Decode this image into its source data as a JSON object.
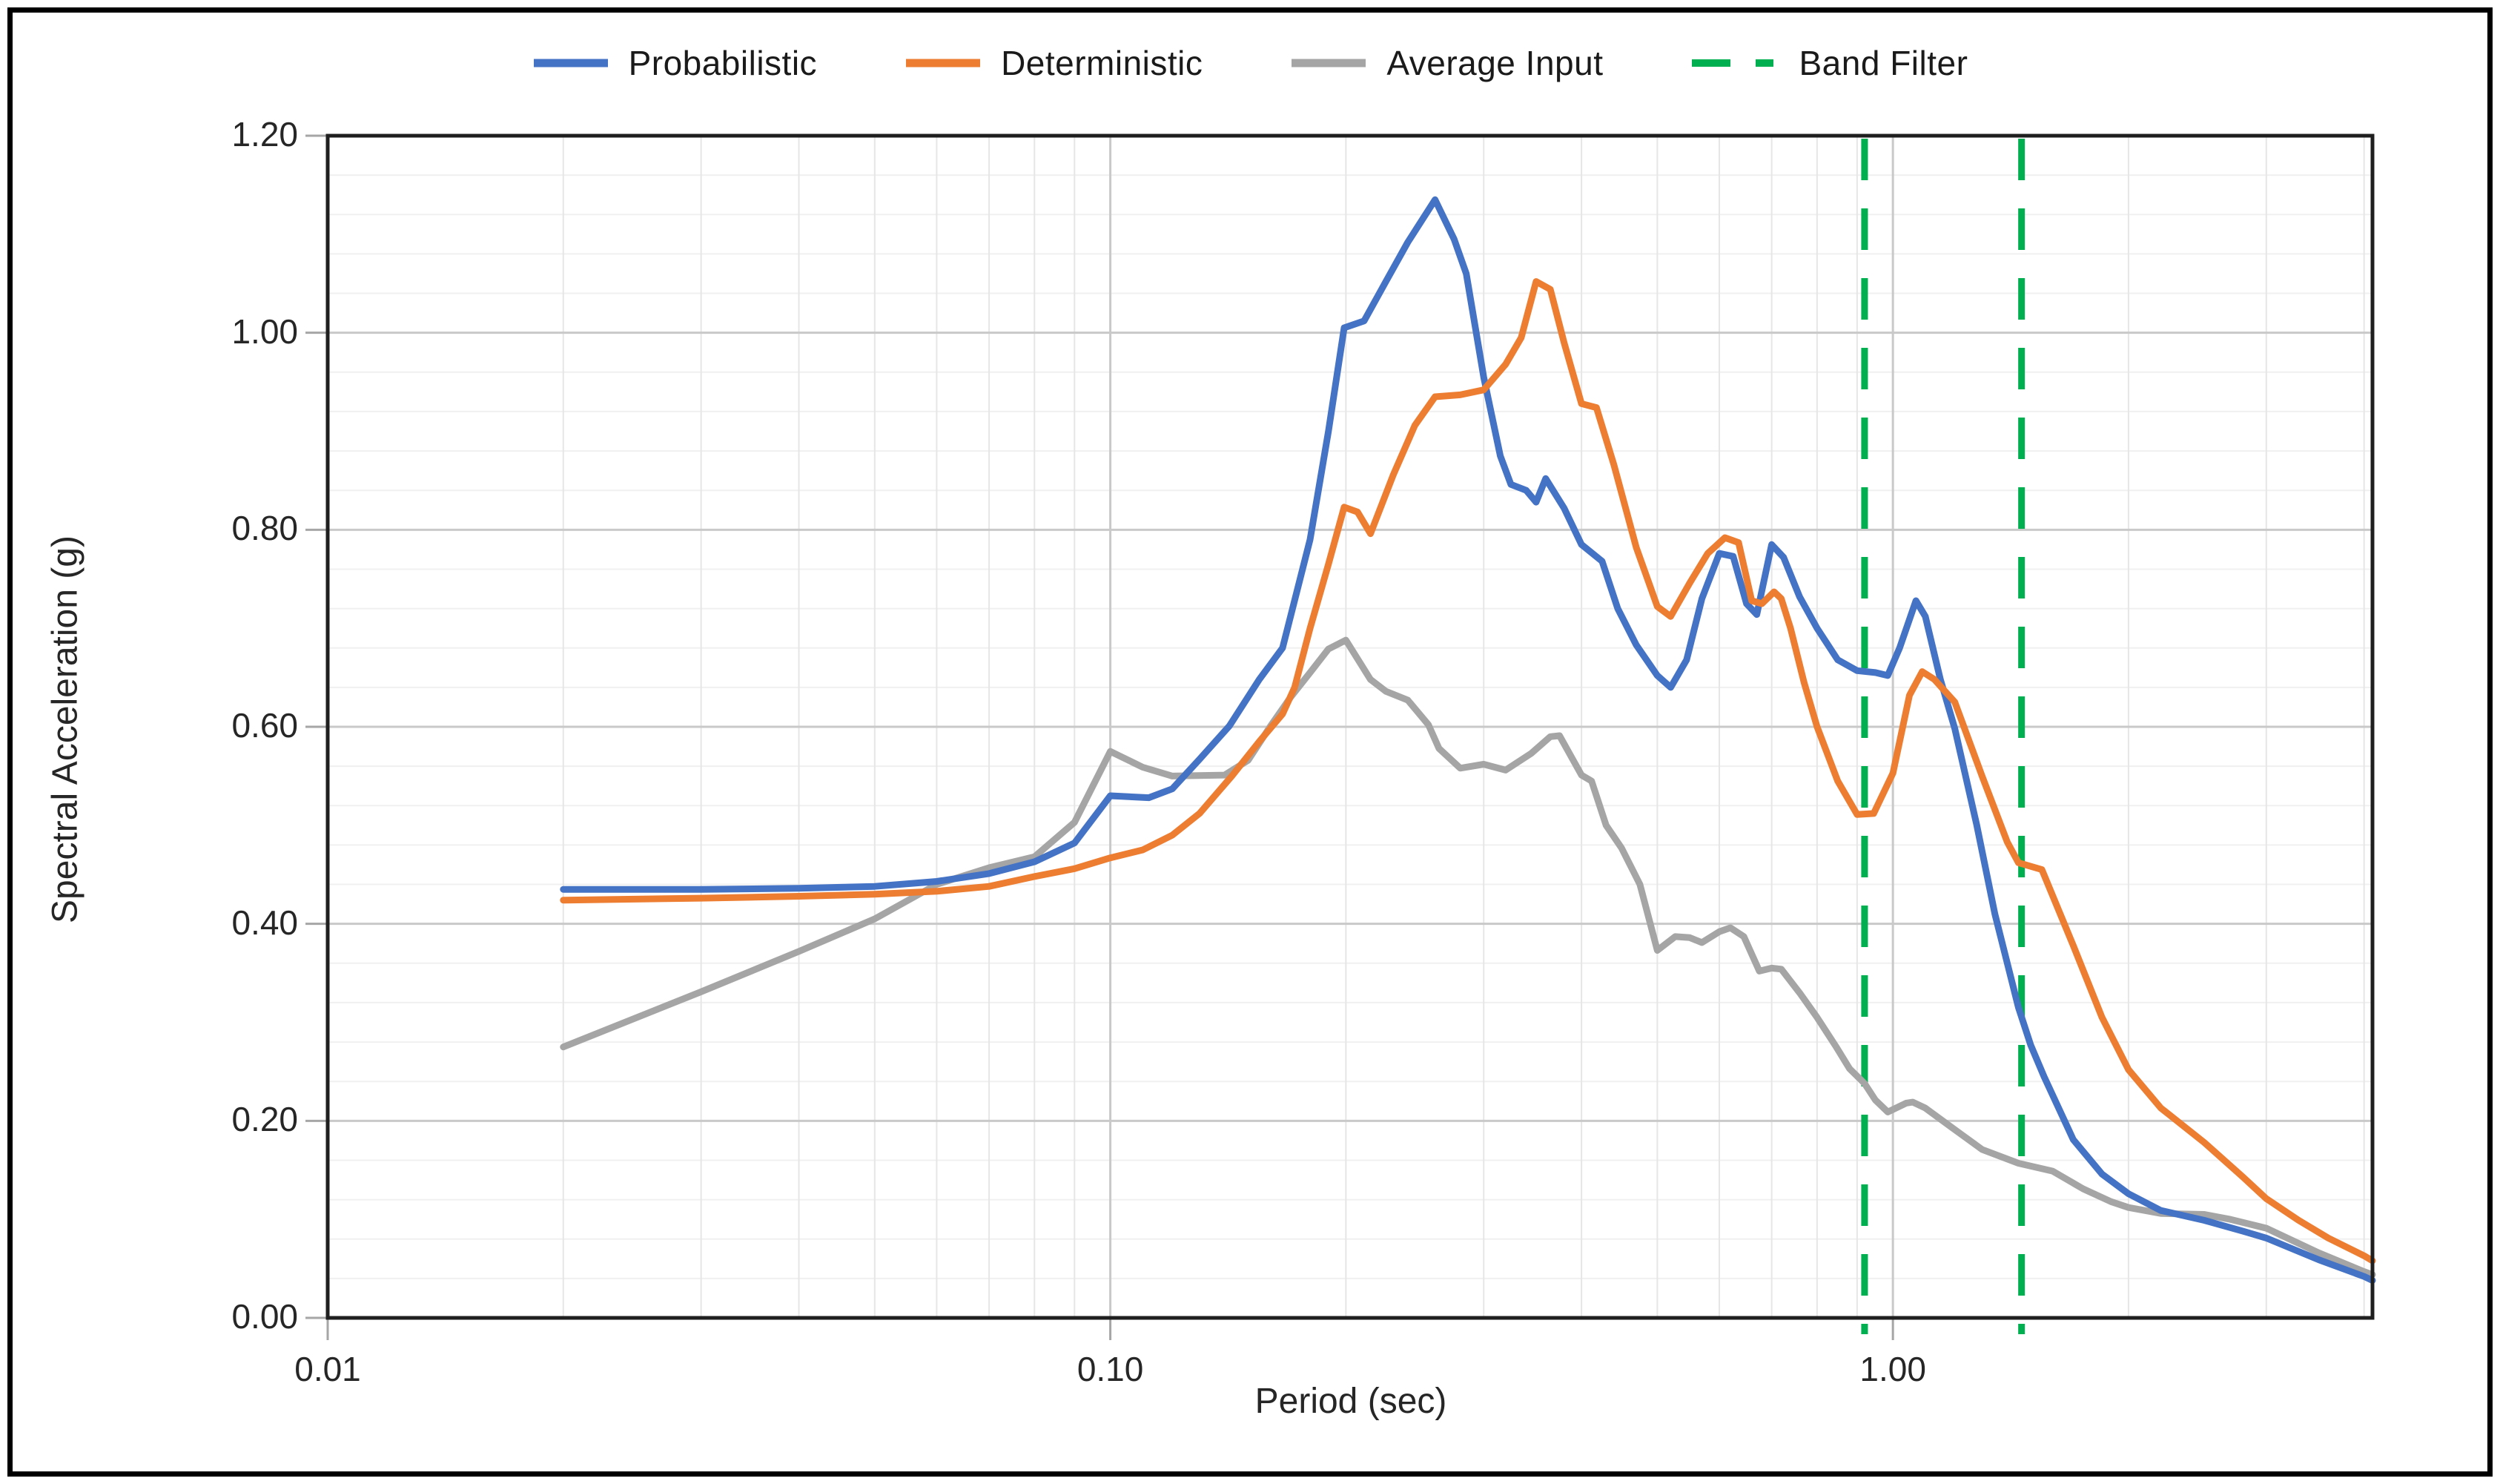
{
  "legend": {
    "items": [
      {
        "label": "Probabilistic",
        "color": "#4472C4",
        "style": "solid"
      },
      {
        "label": "Deterministic",
        "color": "#ED7D31",
        "style": "solid"
      },
      {
        "label": "Average Input",
        "color": "#A5A5A5",
        "style": "solid"
      },
      {
        "label": "Band Filter",
        "color": "#00B050",
        "style": "dashed"
      }
    ]
  },
  "axes": {
    "x_title": "Period (sec)",
    "y_title": "Spectral Acceleration (g)",
    "x_tick_labels": [
      "0.01",
      "0.10",
      "1.00"
    ],
    "x_tick_values": [
      0.01,
      0.1,
      1.0
    ],
    "y_tick_labels": [
      "0.00",
      "0.20",
      "0.40",
      "0.60",
      "0.80",
      "1.00",
      "1.20"
    ],
    "y_tick_values": [
      0.0,
      0.2,
      0.4,
      0.6,
      0.8,
      1.0,
      1.2
    ]
  },
  "colors": {
    "frame": "#1f1f1f",
    "major_grid": "#c9c9c9",
    "minor_grid_h": "#f0f0f0",
    "minor_grid_v": "#e6e6e6",
    "tick": "#a6a6a6",
    "band_filter": "#00B050"
  },
  "chart_data": {
    "type": "line",
    "title": "",
    "xlabel": "Period (sec)",
    "ylabel": "Spectral Acceleration (g)",
    "x_scale": "log",
    "xlim": [
      0.01,
      4.1
    ],
    "ylim": [
      0.0,
      1.2
    ],
    "y_major_unit": 0.2,
    "y_minor_unit": 0.04,
    "grid": true,
    "legend_position": "top",
    "band_filter_periods": [
      0.92,
      1.46
    ],
    "series": [
      {
        "name": "Probabilistic",
        "color": "#4472C4",
        "dash": null,
        "points": [
          [
            0.02,
            0.435
          ],
          [
            0.03,
            0.435
          ],
          [
            0.04,
            0.436
          ],
          [
            0.05,
            0.438
          ],
          [
            0.06,
            0.443
          ],
          [
            0.07,
            0.451
          ],
          [
            0.08,
            0.463
          ],
          [
            0.09,
            0.482
          ],
          [
            0.1,
            0.53
          ],
          [
            0.112,
            0.528
          ],
          [
            0.12,
            0.537
          ],
          [
            0.13,
            0.567
          ],
          [
            0.142,
            0.601
          ],
          [
            0.155,
            0.648
          ],
          [
            0.166,
            0.68
          ],
          [
            0.18,
            0.79
          ],
          [
            0.19,
            0.9
          ],
          [
            0.199,
            1.005
          ],
          [
            0.211,
            1.012
          ],
          [
            0.225,
            1.052
          ],
          [
            0.24,
            1.092
          ],
          [
            0.26,
            1.135
          ],
          [
            0.275,
            1.095
          ],
          [
            0.285,
            1.06
          ],
          [
            0.3,
            0.955
          ],
          [
            0.315,
            0.875
          ],
          [
            0.325,
            0.846
          ],
          [
            0.34,
            0.84
          ],
          [
            0.35,
            0.828
          ],
          [
            0.36,
            0.852
          ],
          [
            0.38,
            0.822
          ],
          [
            0.4,
            0.785
          ],
          [
            0.425,
            0.768
          ],
          [
            0.445,
            0.72
          ],
          [
            0.47,
            0.683
          ],
          [
            0.5,
            0.652
          ],
          [
            0.52,
            0.64
          ],
          [
            0.545,
            0.668
          ],
          [
            0.57,
            0.73
          ],
          [
            0.6,
            0.776
          ],
          [
            0.625,
            0.773
          ],
          [
            0.65,
            0.725
          ],
          [
            0.67,
            0.714
          ],
          [
            0.7,
            0.785
          ],
          [
            0.725,
            0.772
          ],
          [
            0.76,
            0.732
          ],
          [
            0.8,
            0.7
          ],
          [
            0.85,
            0.668
          ],
          [
            0.9,
            0.657
          ],
          [
            0.95,
            0.655
          ],
          [
            0.985,
            0.652
          ],
          [
            1.02,
            0.68
          ],
          [
            1.07,
            0.728
          ],
          [
            1.1,
            0.712
          ],
          [
            1.15,
            0.648
          ],
          [
            1.2,
            0.598
          ],
          [
            1.28,
            0.5
          ],
          [
            1.35,
            0.41
          ],
          [
            1.447,
            0.315
          ],
          [
            1.5,
            0.277
          ],
          [
            1.56,
            0.245
          ],
          [
            1.7,
            0.181
          ],
          [
            1.85,
            0.146
          ],
          [
            2.0,
            0.126
          ],
          [
            2.2,
            0.109
          ],
          [
            2.5,
            0.099
          ],
          [
            2.8,
            0.088
          ],
          [
            3.0,
            0.081
          ],
          [
            3.5,
            0.059
          ],
          [
            4.0,
            0.042
          ],
          [
            4.1,
            0.038
          ]
        ]
      },
      {
        "name": "Deterministic",
        "color": "#ED7D31",
        "dash": null,
        "points": [
          [
            0.02,
            0.424
          ],
          [
            0.03,
            0.426
          ],
          [
            0.04,
            0.428
          ],
          [
            0.05,
            0.43
          ],
          [
            0.06,
            0.433
          ],
          [
            0.07,
            0.438
          ],
          [
            0.08,
            0.448
          ],
          [
            0.09,
            0.456
          ],
          [
            0.1,
            0.467
          ],
          [
            0.11,
            0.475
          ],
          [
            0.12,
            0.49
          ],
          [
            0.13,
            0.512
          ],
          [
            0.143,
            0.55
          ],
          [
            0.155,
            0.585
          ],
          [
            0.166,
            0.613
          ],
          [
            0.172,
            0.64
          ],
          [
            0.18,
            0.7
          ],
          [
            0.19,
            0.765
          ],
          [
            0.199,
            0.823
          ],
          [
            0.207,
            0.818
          ],
          [
            0.215,
            0.796
          ],
          [
            0.23,
            0.856
          ],
          [
            0.245,
            0.906
          ],
          [
            0.26,
            0.935
          ],
          [
            0.28,
            0.937
          ],
          [
            0.3,
            0.942
          ],
          [
            0.32,
            0.968
          ],
          [
            0.335,
            0.995
          ],
          [
            0.35,
            1.052
          ],
          [
            0.365,
            1.044
          ],
          [
            0.38,
            0.99
          ],
          [
            0.4,
            0.928
          ],
          [
            0.418,
            0.924
          ],
          [
            0.44,
            0.866
          ],
          [
            0.47,
            0.782
          ],
          [
            0.5,
            0.722
          ],
          [
            0.52,
            0.712
          ],
          [
            0.55,
            0.746
          ],
          [
            0.58,
            0.776
          ],
          [
            0.61,
            0.792
          ],
          [
            0.635,
            0.787
          ],
          [
            0.66,
            0.728
          ],
          [
            0.68,
            0.725
          ],
          [
            0.705,
            0.737
          ],
          [
            0.72,
            0.73
          ],
          [
            0.74,
            0.7
          ],
          [
            0.77,
            0.645
          ],
          [
            0.8,
            0.6
          ],
          [
            0.85,
            0.545
          ],
          [
            0.9,
            0.511
          ],
          [
            0.945,
            0.512
          ],
          [
            1.0,
            0.553
          ],
          [
            1.05,
            0.632
          ],
          [
            1.09,
            0.656
          ],
          [
            1.13,
            0.648
          ],
          [
            1.2,
            0.625
          ],
          [
            1.3,
            0.55
          ],
          [
            1.4,
            0.483
          ],
          [
            1.447,
            0.462
          ],
          [
            1.55,
            0.455
          ],
          [
            1.7,
            0.378
          ],
          [
            1.85,
            0.305
          ],
          [
            2.0,
            0.252
          ],
          [
            2.2,
            0.213
          ],
          [
            2.5,
            0.178
          ],
          [
            2.8,
            0.143
          ],
          [
            3.0,
            0.121
          ],
          [
            3.3,
            0.099
          ],
          [
            3.6,
            0.081
          ],
          [
            4.0,
            0.063
          ],
          [
            4.1,
            0.058
          ]
        ]
      },
      {
        "name": "Average Input",
        "color": "#A5A5A5",
        "dash": null,
        "points": [
          [
            0.02,
            0.275
          ],
          [
            0.03,
            0.331
          ],
          [
            0.04,
            0.372
          ],
          [
            0.05,
            0.405
          ],
          [
            0.06,
            0.44
          ],
          [
            0.07,
            0.457
          ],
          [
            0.08,
            0.468
          ],
          [
            0.09,
            0.503
          ],
          [
            0.1,
            0.575
          ],
          [
            0.11,
            0.559
          ],
          [
            0.12,
            0.55
          ],
          [
            0.14,
            0.551
          ],
          [
            0.15,
            0.566
          ],
          [
            0.16,
            0.6
          ],
          [
            0.17,
            0.63
          ],
          [
            0.18,
            0.655
          ],
          [
            0.19,
            0.679
          ],
          [
            0.2,
            0.688
          ],
          [
            0.215,
            0.648
          ],
          [
            0.225,
            0.636
          ],
          [
            0.24,
            0.627
          ],
          [
            0.255,
            0.602
          ],
          [
            0.263,
            0.578
          ],
          [
            0.28,
            0.558
          ],
          [
            0.3,
            0.562
          ],
          [
            0.32,
            0.556
          ],
          [
            0.345,
            0.573
          ],
          [
            0.365,
            0.59
          ],
          [
            0.375,
            0.591
          ],
          [
            0.4,
            0.551
          ],
          [
            0.412,
            0.545
          ],
          [
            0.43,
            0.5
          ],
          [
            0.45,
            0.477
          ],
          [
            0.475,
            0.44
          ],
          [
            0.5,
            0.373
          ],
          [
            0.527,
            0.387
          ],
          [
            0.55,
            0.386
          ],
          [
            0.57,
            0.381
          ],
          [
            0.6,
            0.392
          ],
          [
            0.62,
            0.396
          ],
          [
            0.645,
            0.387
          ],
          [
            0.675,
            0.352
          ],
          [
            0.7,
            0.355
          ],
          [
            0.72,
            0.354
          ],
          [
            0.76,
            0.33
          ],
          [
            0.8,
            0.305
          ],
          [
            0.845,
            0.276
          ],
          [
            0.88,
            0.253
          ],
          [
            0.92,
            0.238
          ],
          [
            0.95,
            0.221
          ],
          [
            0.985,
            0.209
          ],
          [
            1.04,
            0.218
          ],
          [
            1.06,
            0.219
          ],
          [
            1.1,
            0.213
          ],
          [
            1.2,
            0.191
          ],
          [
            1.3,
            0.171
          ],
          [
            1.447,
            0.157
          ],
          [
            1.6,
            0.149
          ],
          [
            1.75,
            0.131
          ],
          [
            1.9,
            0.118
          ],
          [
            2.0,
            0.112
          ],
          [
            2.2,
            0.106
          ],
          [
            2.5,
            0.105
          ],
          [
            2.7,
            0.1
          ],
          [
            3.0,
            0.091
          ],
          [
            3.5,
            0.066
          ],
          [
            4.0,
            0.047
          ],
          [
            4.1,
            0.044
          ]
        ]
      }
    ]
  }
}
